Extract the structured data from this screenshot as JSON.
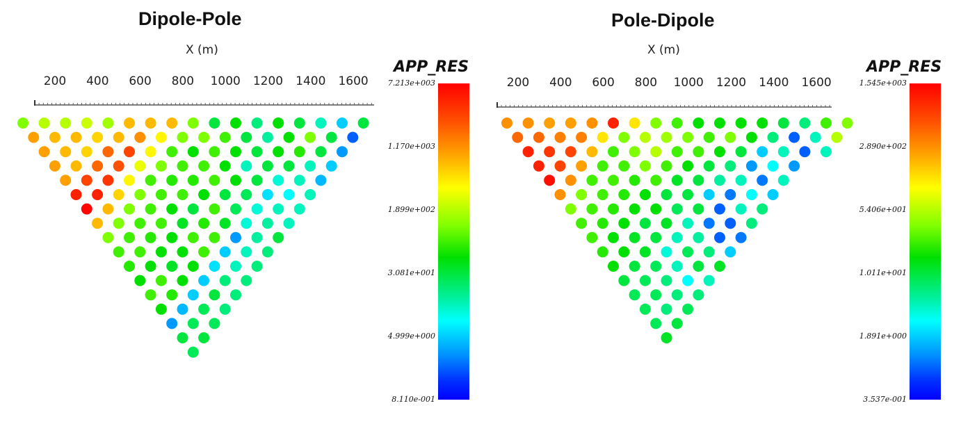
{
  "chart_data": [
    {
      "type": "scatter",
      "title": "Dipole-Pole",
      "xlabel": "X (m)",
      "xticks": [
        "200",
        "400",
        "600",
        "800",
        "1000",
        "1200",
        "1400",
        "1600"
      ],
      "colorbar": {
        "title": "APP_RES",
        "scale": "log",
        "labels": [
          "7.213e+003",
          "1.170e+003",
          "1.899e+002",
          "3.081e+001",
          "4.999e+000",
          "8.110e-001"
        ]
      },
      "pseudosection_rows": [
        [
          0.55,
          0.6,
          0.6,
          0.62,
          0.58,
          0.75,
          0.75,
          0.75,
          0.55,
          0.4,
          0.45,
          0.35,
          0.45,
          0.4,
          0.3,
          0.2,
          0.4
        ],
        [
          0.78,
          0.75,
          0.75,
          0.72,
          0.75,
          0.8,
          0.68,
          0.55,
          0.55,
          0.5,
          0.4,
          0.32,
          0.45,
          0.55,
          0.4,
          0.1
        ],
        [
          0.78,
          0.75,
          0.72,
          0.85,
          0.9,
          0.68,
          0.5,
          0.45,
          0.5,
          0.45,
          0.4,
          0.45,
          0.48,
          0.4,
          0.15
        ],
        [
          0.78,
          0.75,
          0.85,
          0.88,
          0.65,
          0.55,
          0.5,
          0.5,
          0.45,
          0.3,
          0.4,
          0.4,
          0.3,
          0.2
        ],
        [
          0.78,
          0.9,
          0.92,
          0.68,
          0.5,
          0.48,
          0.48,
          0.5,
          0.45,
          0.4,
          0.28,
          0.3,
          0.18
        ],
        [
          0.95,
          0.95,
          0.72,
          0.55,
          0.5,
          0.5,
          0.45,
          0.4,
          0.38,
          0.22,
          0.25,
          0.3
        ],
        [
          0.99,
          0.75,
          0.55,
          0.5,
          0.45,
          0.4,
          0.5,
          0.38,
          0.28,
          0.3,
          0.3
        ],
        [
          0.75,
          0.55,
          0.5,
          0.5,
          0.42,
          0.48,
          0.42,
          0.28,
          0.32,
          0.3
        ],
        [
          0.55,
          0.5,
          0.48,
          0.45,
          0.5,
          0.5,
          0.15,
          0.32,
          0.4
        ],
        [
          0.5,
          0.5,
          0.45,
          0.45,
          0.5,
          0.2,
          0.3,
          0.35
        ],
        [
          0.48,
          0.45,
          0.42,
          0.45,
          0.22,
          0.3,
          0.35
        ],
        [
          0.45,
          0.5,
          0.45,
          0.2,
          0.35,
          0.35
        ],
        [
          0.5,
          0.48,
          0.2,
          0.4,
          0.35
        ],
        [
          0.45,
          0.18,
          0.38,
          0.35
        ],
        [
          0.15,
          0.38,
          0.38
        ],
        [
          0.4,
          0.4
        ],
        [
          0.38
        ]
      ]
    },
    {
      "type": "scatter",
      "title": "Pole-Dipole",
      "xlabel": "X (m)",
      "xticks": [
        "200",
        "400",
        "600",
        "800",
        "1000",
        "1200",
        "1400",
        "1600"
      ],
      "colorbar": {
        "title": "APP_RES",
        "scale": "log",
        "labels": [
          "1.545e+003",
          "2.890e+002",
          "5.406e+001",
          "1.011e+001",
          "1.891e+000",
          "3.537e-001"
        ]
      },
      "pseudosection_rows": [
        [
          0.8,
          0.8,
          0.78,
          0.78,
          0.8,
          0.95,
          0.7,
          0.55,
          0.5,
          0.45,
          0.45,
          0.45,
          0.45,
          0.4,
          0.35,
          0.5,
          0.55
        ],
        [
          0.85,
          0.85,
          0.82,
          0.82,
          0.7,
          0.55,
          0.6,
          0.58,
          0.55,
          0.5,
          0.55,
          0.45,
          0.35,
          0.1,
          0.3,
          0.6
        ],
        [
          0.95,
          0.92,
          0.9,
          0.75,
          0.5,
          0.55,
          0.6,
          0.5,
          0.5,
          0.45,
          0.4,
          0.2,
          0.3,
          0.1,
          0.3
        ],
        [
          0.95,
          0.9,
          0.78,
          0.5,
          0.5,
          0.55,
          0.5,
          0.45,
          0.4,
          0.35,
          0.15,
          0.25,
          0.15
        ],
        [
          0.98,
          0.8,
          0.5,
          0.5,
          0.48,
          0.5,
          0.42,
          0.4,
          0.32,
          0.3,
          0.12,
          0.3
        ],
        [
          0.8,
          0.55,
          0.5,
          0.48,
          0.45,
          0.4,
          0.4,
          0.2,
          0.12,
          0.25,
          0.2
        ],
        [
          0.55,
          0.5,
          0.48,
          0.45,
          0.45,
          0.38,
          0.4,
          0.1,
          0.3,
          0.35
        ],
        [
          0.5,
          0.48,
          0.45,
          0.4,
          0.42,
          0.3,
          0.12,
          0.1,
          0.35
        ],
        [
          0.5,
          0.45,
          0.42,
          0.4,
          0.3,
          0.32,
          0.1,
          0.12
        ],
        [
          0.48,
          0.45,
          0.42,
          0.28,
          0.38,
          0.35,
          0.2
        ],
        [
          0.45,
          0.4,
          0.38,
          0.3,
          0.4,
          0.42
        ],
        [
          0.4,
          0.38,
          0.35,
          0.25,
          0.3
        ],
        [
          0.38,
          0.38,
          0.35,
          0.35
        ],
        [
          0.38,
          0.35,
          0.38
        ],
        [
          0.38,
          0.4
        ],
        [
          0.42
        ]
      ]
    }
  ]
}
